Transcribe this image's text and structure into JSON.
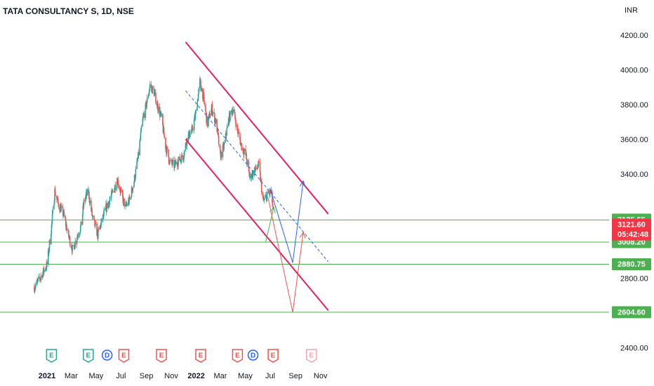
{
  "colors": {
    "up": "#26a69a",
    "down": "#ef5350",
    "channel": "#e91e63",
    "midline": "#2962ff",
    "level": "#4caf50",
    "price_tag": "#f23645",
    "blue_path": "#2962ff",
    "red_path": "#ef5350",
    "green_path": "#4caf50",
    "axis_text": "#131722"
  },
  "chart_data": {
    "type": "candlestick",
    "title": "TATA CONSULTANCY S, 1D, NSE",
    "currency": "INR",
    "ylim": [
      2390,
      4270
    ],
    "y_ticks": [
      "4200.00",
      "4000.00",
      "3800.00",
      "3600.00",
      "3400.00",
      "2800.00",
      "2400.00"
    ],
    "x_ticks": [
      "2021",
      "Mar",
      "May",
      "Jul",
      "Sep",
      "Nov",
      "2022",
      "Mar",
      "May",
      "Jul",
      "Sep",
      "Nov"
    ],
    "current_price": {
      "label": "3121.60",
      "countdown": "05:42:48",
      "value": 3121.6
    },
    "levels": [
      {
        "label": "3135.65",
        "value": 3135.65
      },
      {
        "label": "3008.20",
        "value": 3008.2
      },
      {
        "label": "2880.75",
        "value": 2880.75
      },
      {
        "label": "2604.60",
        "value": 2604.6
      }
    ],
    "channel": {
      "upper": [
        [
          "2021-12-06",
          4160
        ],
        [
          "2022-11-20",
          3170
        ]
      ],
      "lower": [
        [
          "2021-12-06",
          3600
        ],
        [
          "2022-11-20",
          2615
        ]
      ],
      "mid_dashed": [
        [
          "2021-12-06",
          3880
        ],
        [
          "2022-11-20",
          2895
        ]
      ]
    },
    "projections": {
      "blue": [
        [
          "2022-06-30",
          3320
        ],
        [
          "2022-08-25",
          2890
        ],
        [
          "2022-09-20",
          3360
        ]
      ],
      "red": [
        [
          "2022-06-25",
          3270
        ],
        [
          "2022-08-25",
          2605
        ],
        [
          "2022-09-20",
          3065
        ]
      ],
      "green": [
        [
          "2022-06-20",
          3010
        ],
        [
          "2022-07-10",
          3210
        ]
      ]
    },
    "price_path": [
      [
        "2020-12-01",
        2750
      ],
      [
        "2020-12-15",
        2800
      ],
      [
        "2021-01-01",
        2880
      ],
      [
        "2021-01-12",
        3100
      ],
      [
        "2021-01-20",
        3300
      ],
      [
        "2021-01-28",
        3230
      ],
      [
        "2021-02-10",
        3170
      ],
      [
        "2021-02-22",
        3050
      ],
      [
        "2021-03-05",
        2960
      ],
      [
        "2021-03-15",
        3040
      ],
      [
        "2021-03-25",
        3100
      ],
      [
        "2021-04-02",
        3250
      ],
      [
        "2021-04-12",
        3300
      ],
      [
        "2021-04-22",
        3150
      ],
      [
        "2021-05-05",
        3050
      ],
      [
        "2021-05-15",
        3130
      ],
      [
        "2021-05-28",
        3220
      ],
      [
        "2021-06-10",
        3290
      ],
      [
        "2021-06-22",
        3370
      ],
      [
        "2021-07-02",
        3280
      ],
      [
        "2021-07-12",
        3210
      ],
      [
        "2021-07-22",
        3250
      ],
      [
        "2021-08-02",
        3360
      ],
      [
        "2021-08-12",
        3500
      ],
      [
        "2021-08-22",
        3700
      ],
      [
        "2021-09-01",
        3800
      ],
      [
        "2021-09-10",
        3910
      ],
      [
        "2021-09-20",
        3870
      ],
      [
        "2021-09-30",
        3780
      ],
      [
        "2021-10-08",
        3720
      ],
      [
        "2021-10-18",
        3560
      ],
      [
        "2021-10-28",
        3470
      ],
      [
        "2021-11-08",
        3450
      ],
      [
        "2021-11-20",
        3480
      ],
      [
        "2021-11-30",
        3500
      ],
      [
        "2021-12-10",
        3610
      ],
      [
        "2021-12-22",
        3650
      ],
      [
        "2021-12-31",
        3750
      ],
      [
        "2022-01-10",
        3930
      ],
      [
        "2022-01-18",
        3850
      ],
      [
        "2022-01-28",
        3690
      ],
      [
        "2022-02-08",
        3780
      ],
      [
        "2022-02-20",
        3680
      ],
      [
        "2022-03-01",
        3500
      ],
      [
        "2022-03-10",
        3560
      ],
      [
        "2022-03-22",
        3720
      ],
      [
        "2022-04-01",
        3780
      ],
      [
        "2022-04-12",
        3650
      ],
      [
        "2022-04-22",
        3560
      ],
      [
        "2022-05-02",
        3510
      ],
      [
        "2022-05-12",
        3380
      ],
      [
        "2022-05-24",
        3420
      ],
      [
        "2022-06-03",
        3450
      ],
      [
        "2022-06-14",
        3240
      ],
      [
        "2022-06-24",
        3280
      ],
      [
        "2022-07-04",
        3300
      ],
      [
        "2022-07-10",
        3121.6
      ]
    ],
    "earnings_events": [
      {
        "date": "2021-01-12",
        "label": "E",
        "kind": "earnings",
        "color": "#26a69a"
      },
      {
        "date": "2021-04-12",
        "label": "E",
        "kind": "earnings",
        "color": "#26a69a"
      },
      {
        "date": "2021-05-28",
        "label": "D",
        "kind": "dividend",
        "color": "#2962ff"
      },
      {
        "date": "2021-07-08",
        "label": "E",
        "kind": "earnings",
        "color": "#ef5350"
      },
      {
        "date": "2021-10-08",
        "label": "E",
        "kind": "earnings",
        "color": "#ef5350"
      },
      {
        "date": "2022-01-12",
        "label": "E",
        "kind": "earnings",
        "color": "#ef5350"
      },
      {
        "date": "2022-04-12",
        "label": "E",
        "kind": "earnings",
        "color": "#ef5350"
      },
      {
        "date": "2022-05-20",
        "label": "D",
        "kind": "dividend",
        "color": "#2962ff"
      },
      {
        "date": "2022-07-08",
        "label": "E",
        "kind": "earnings",
        "color": "#ef5350"
      },
      {
        "date": "2022-10-10",
        "label": "E",
        "kind": "earnings_future",
        "color": "#f8a3ae"
      }
    ]
  }
}
